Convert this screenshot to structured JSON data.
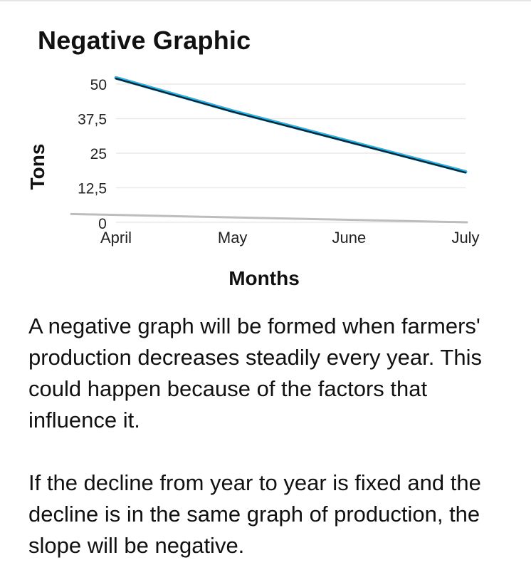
{
  "page": {
    "paragraphs": [
      "A negative graph will be formed when farmers' production decreases steadily every year. This could happen because of the factors that influence it.",
      "If the decline from year to year is fixed and the decline is in the same graph of production, the slope will be negative."
    ]
  },
  "chart_data": {
    "type": "line",
    "title": "Negative Graphic",
    "xlabel": "Months",
    "ylabel": "Tons",
    "categories": [
      "April",
      "May",
      "June",
      "July"
    ],
    "yticks": [
      "0",
      "12,5",
      "25",
      "37,5",
      "50"
    ],
    "ylim": [
      0,
      50
    ],
    "grid": true,
    "series": [
      {
        "values": [
          52,
          40,
          29,
          18
        ],
        "color": "#0f2538",
        "highlight": "#2bb8e6"
      }
    ],
    "baseline": {
      "values": [
        3,
        0
      ],
      "color": "#bdbdbd"
    }
  }
}
